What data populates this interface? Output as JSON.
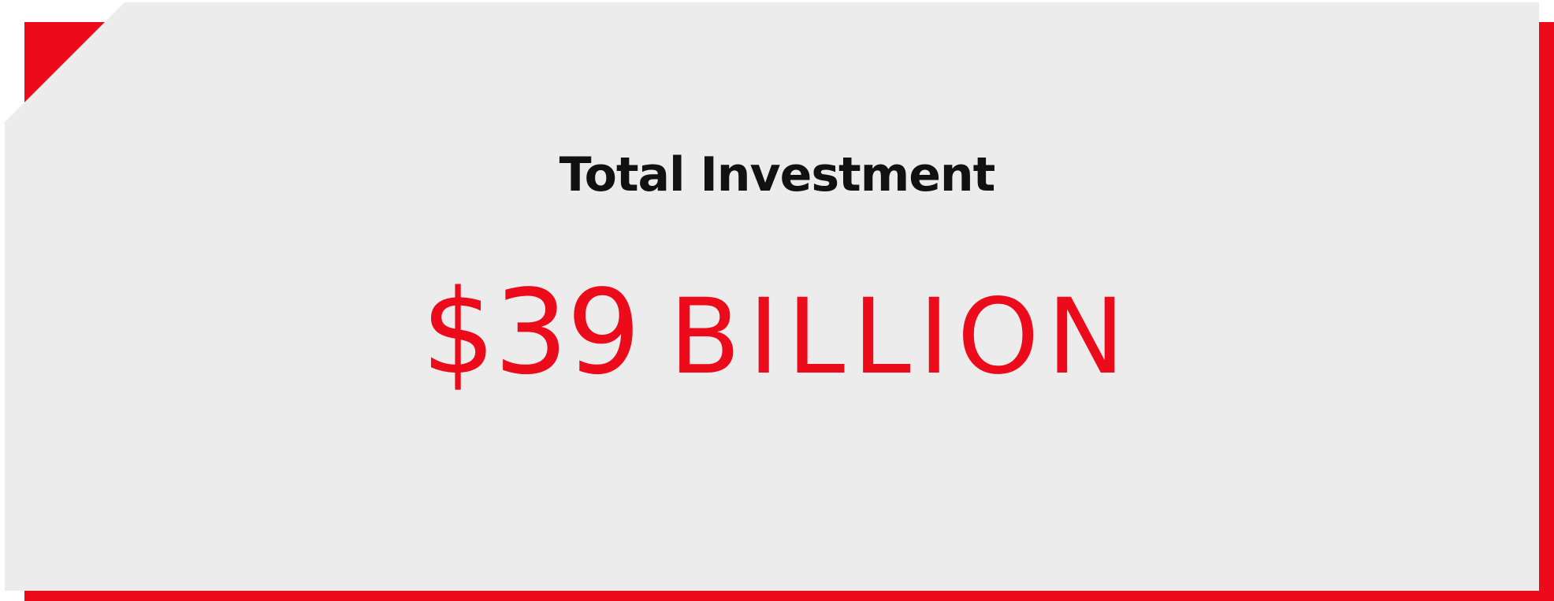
{
  "card": {
    "title": "Total Investment",
    "value_amount": "$39",
    "value_unit": "BILLION"
  },
  "colors": {
    "accent": "#ec0b1a",
    "panel": "#ececec",
    "text": "#111111"
  }
}
